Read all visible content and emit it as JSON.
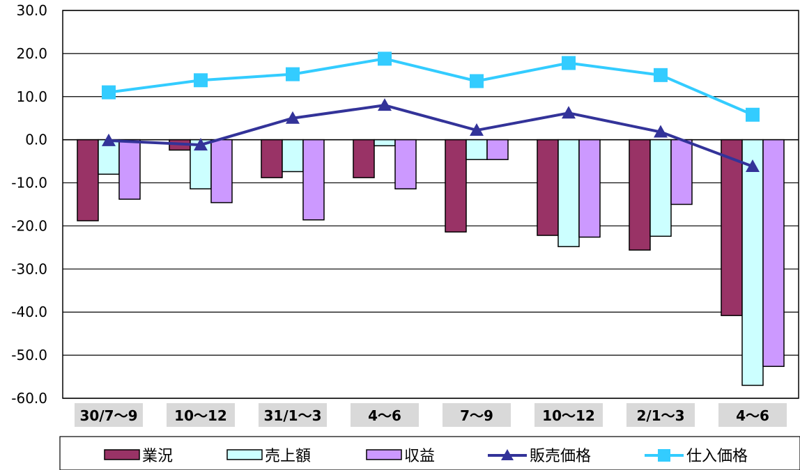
{
  "chart_data": {
    "type": "bar",
    "categories": [
      "30/7～9",
      "10～12",
      "31/1～3",
      "4～6",
      "7～9",
      "10～12",
      "2/1～3",
      "4～6"
    ],
    "ylim": [
      -60,
      30
    ],
    "yticks": [
      "30.0",
      "20.0",
      "10.0",
      "0.0",
      "-10.0",
      "-20.0",
      "-30.0",
      "-40.0",
      "-50.0",
      "-60.0"
    ],
    "ytick_values": [
      30,
      20,
      10,
      0,
      -10,
      -20,
      -30,
      -40,
      -50,
      -60
    ],
    "grid": true,
    "legend_position": "bottom",
    "bar_series": [
      {
        "name": "業況",
        "color": "#993366",
        "values": [
          -18.8,
          -2.4,
          -8.8,
          -8.8,
          -21.4,
          -22.2,
          -25.6,
          -40.8
        ]
      },
      {
        "name": "売上額",
        "color": "#CCFFFF",
        "values": [
          -8.0,
          -11.4,
          -7.4,
          -1.4,
          -4.6,
          -24.8,
          -22.4,
          -57.0
        ]
      },
      {
        "name": "収益",
        "color": "#CC99FF",
        "values": [
          -13.8,
          -14.6,
          -18.6,
          -11.4,
          -4.6,
          -22.6,
          -15.0,
          -52.6
        ]
      }
    ],
    "line_series": [
      {
        "name": "販売価格",
        "color": "#333399",
        "marker": "triangle",
        "values": [
          -0.2,
          -1.2,
          5.0,
          8.0,
          2.2,
          6.2,
          1.8,
          -6.2
        ]
      },
      {
        "name": "仕入価格",
        "color": "#33CCFF",
        "marker": "square",
        "values": [
          11.0,
          13.8,
          15.2,
          18.8,
          13.6,
          17.8,
          15.0,
          5.8
        ]
      }
    ]
  }
}
